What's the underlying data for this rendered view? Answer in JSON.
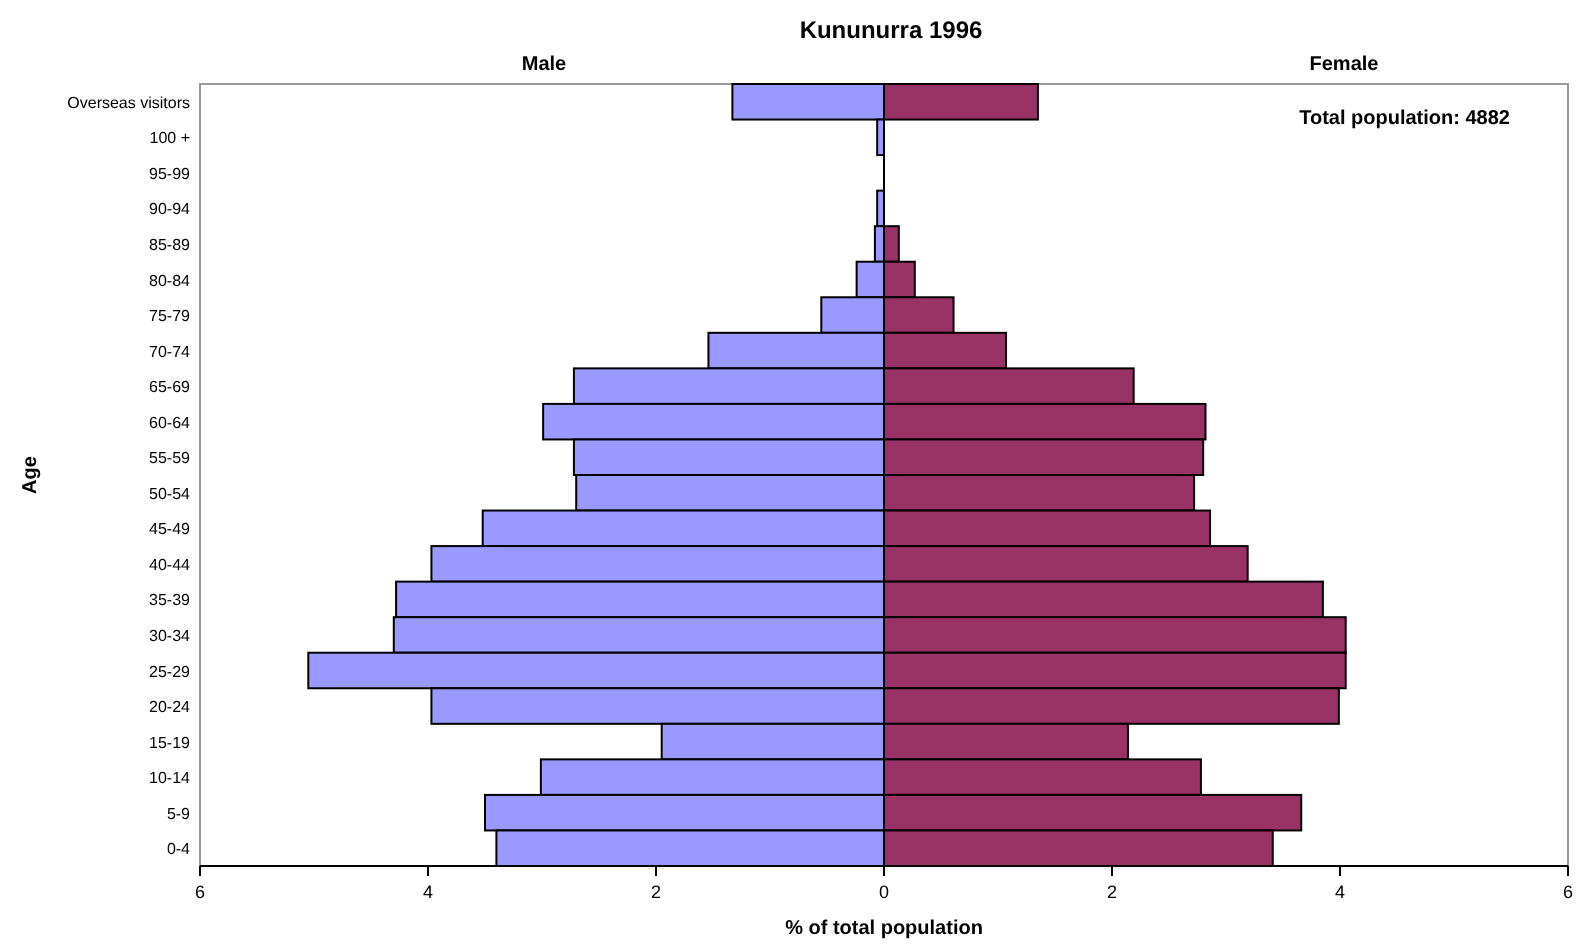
{
  "chart_data": {
    "type": "bar",
    "orientation": "horizontal",
    "stacked": true,
    "title": "Kununurra 1996",
    "xlabel": "% of total population",
    "ylabel": "Age",
    "categories": [
      "Overseas visitors",
      "100 +",
      "95-99",
      "90-94",
      "85-89",
      "80-84",
      "75-79",
      "70-74",
      "65-69",
      "60-64",
      "55-59",
      "50-54",
      "45-49",
      "40-44",
      "35-39",
      "30-34",
      "25-29",
      "20-24",
      "15-19",
      "10-14",
      "5-9",
      "0-4"
    ],
    "series": [
      {
        "name": "Male",
        "color": "#9999ff",
        "values": [
          -1.33,
          -0.06,
          0,
          -0.06,
          -0.08,
          -0.24,
          -0.55,
          -1.54,
          -2.72,
          -2.99,
          -2.72,
          -2.7,
          -3.52,
          -3.97,
          -4.28,
          -4.3,
          -5.05,
          -3.97,
          -1.95,
          -3.01,
          -3.5,
          -3.4
        ]
      },
      {
        "name": "Female",
        "color": "#993366",
        "values": [
          1.35,
          0,
          0,
          0,
          0.13,
          0.27,
          0.61,
          1.07,
          2.19,
          2.82,
          2.8,
          2.72,
          2.86,
          3.19,
          3.85,
          4.05,
          4.05,
          3.99,
          2.14,
          2.78,
          3.66,
          3.41
        ]
      }
    ],
    "xlim": [
      -6,
      6
    ],
    "xticks": [
      {
        "value": -6,
        "label": "6"
      },
      {
        "value": -4,
        "label": "4"
      },
      {
        "value": -2,
        "label": "2"
      },
      0,
      2,
      4,
      6
    ],
    "annotations": [
      "Total population: 4882"
    ]
  }
}
